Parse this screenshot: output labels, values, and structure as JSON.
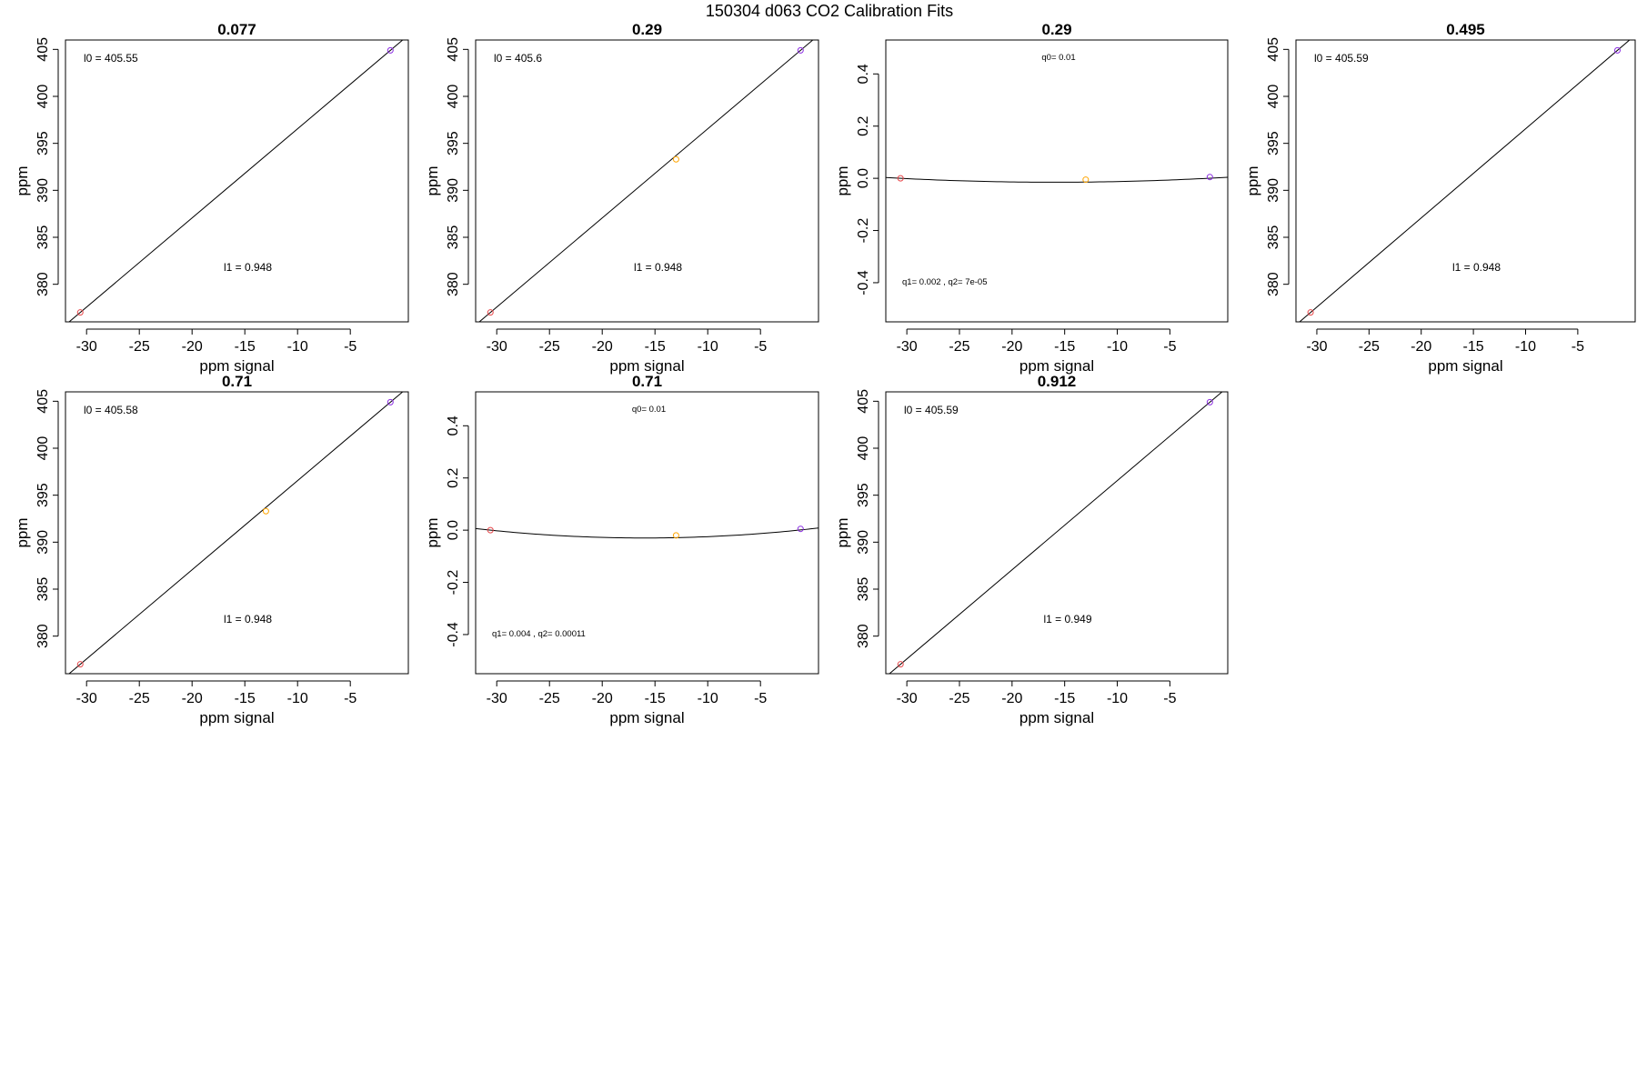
{
  "figure": {
    "title": "150304   d063   CO2 Calibration Fits"
  },
  "chart_data": [
    {
      "type": "scatter",
      "panel": "linear",
      "title": "0.077",
      "xlabel": "ppm signal",
      "ylabel": "ppm",
      "xlim": [
        -32,
        0.5
      ],
      "ylim": [
        376,
        406
      ],
      "xticks": [
        -30,
        -25,
        -20,
        -15,
        -10,
        -5
      ],
      "yticks": [
        380,
        385,
        390,
        395,
        400,
        405
      ],
      "points": [
        {
          "x": -30.6,
          "y": 377,
          "color": "#E8474A"
        },
        {
          "x": -1.2,
          "y": 404.9,
          "color": "#8A2BE2"
        }
      ],
      "fit": {
        "kind": "linear",
        "intercept": 405.55,
        "slope": 0.948
      },
      "annotations": [
        {
          "text": "l0 =  405.55",
          "position": "top-left"
        },
        {
          "text": "l1 =  0.948",
          "position": "lower-center"
        }
      ]
    },
    {
      "type": "scatter",
      "panel": "linear",
      "title": "0.29",
      "xlabel": "ppm signal",
      "ylabel": "ppm",
      "xlim": [
        -32,
        0.5
      ],
      "ylim": [
        376,
        406
      ],
      "xticks": [
        -30,
        -25,
        -20,
        -15,
        -10,
        -5
      ],
      "yticks": [
        380,
        385,
        390,
        395,
        400,
        405
      ],
      "points": [
        {
          "x": -30.6,
          "y": 377,
          "color": "#E8474A"
        },
        {
          "x": -13,
          "y": 393.3,
          "color": "#FFA500"
        },
        {
          "x": -1.2,
          "y": 404.9,
          "color": "#8A2BE2"
        }
      ],
      "fit": {
        "kind": "linear",
        "intercept": 405.6,
        "slope": 0.948
      },
      "annotations": [
        {
          "text": "l0 =  405.6",
          "position": "top-left"
        },
        {
          "text": "l1 =  0.948",
          "position": "lower-center"
        }
      ]
    },
    {
      "type": "scatter",
      "panel": "residual",
      "title": "0.29",
      "xlabel": "ppm signal",
      "ylabel": "ppm",
      "xlim": [
        -32,
        0.5
      ],
      "ylim": [
        -0.55,
        0.53
      ],
      "xticks": [
        -30,
        -25,
        -20,
        -15,
        -10,
        -5
      ],
      "yticks": [
        -0.4,
        -0.2,
        0.0,
        0.2,
        0.4
      ],
      "ytick_labels": [
        "-0.4",
        "-0.2",
        "0.0",
        "0.2",
        "0.4"
      ],
      "points": [
        {
          "x": -30.6,
          "y": 0.0,
          "color": "#E8474A"
        },
        {
          "x": -13,
          "y": -0.005,
          "color": "#FFA500"
        },
        {
          "x": -1.2,
          "y": 0.005,
          "color": "#8A2BE2"
        }
      ],
      "fit": {
        "kind": "quadratic",
        "q0": 0.01,
        "q1": 0.002,
        "q2": 7e-05
      },
      "annotations": [
        {
          "text": "q0= 0.01",
          "position": "top-center"
        },
        {
          "text": "q1= 0.002 , q2= 7e-05",
          "position": "bottom-left"
        }
      ]
    },
    {
      "type": "scatter",
      "panel": "linear",
      "title": "0.495",
      "xlabel": "ppm signal",
      "ylabel": "ppm",
      "xlim": [
        -32,
        0.5
      ],
      "ylim": [
        376,
        406
      ],
      "xticks": [
        -30,
        -25,
        -20,
        -15,
        -10,
        -5
      ],
      "yticks": [
        380,
        385,
        390,
        395,
        400,
        405
      ],
      "points": [
        {
          "x": -30.6,
          "y": 377,
          "color": "#E8474A"
        },
        {
          "x": -1.2,
          "y": 404.9,
          "color": "#8A2BE2"
        }
      ],
      "fit": {
        "kind": "linear",
        "intercept": 405.59,
        "slope": 0.948
      },
      "annotations": [
        {
          "text": "l0 =  405.59",
          "position": "top-left"
        },
        {
          "text": "l1 =  0.948",
          "position": "lower-center"
        }
      ]
    },
    {
      "type": "scatter",
      "panel": "linear",
      "title": "0.71",
      "xlabel": "ppm signal",
      "ylabel": "ppm",
      "xlim": [
        -32,
        0.5
      ],
      "ylim": [
        376,
        406
      ],
      "xticks": [
        -30,
        -25,
        -20,
        -15,
        -10,
        -5
      ],
      "yticks": [
        380,
        385,
        390,
        395,
        400,
        405
      ],
      "points": [
        {
          "x": -30.6,
          "y": 377,
          "color": "#E8474A"
        },
        {
          "x": -13,
          "y": 393.3,
          "color": "#FFA500"
        },
        {
          "x": -1.2,
          "y": 404.9,
          "color": "#8A2BE2"
        }
      ],
      "fit": {
        "kind": "linear",
        "intercept": 405.58,
        "slope": 0.948
      },
      "annotations": [
        {
          "text": "l0 =  405.58",
          "position": "top-left"
        },
        {
          "text": "l1 =  0.948",
          "position": "lower-center"
        }
      ]
    },
    {
      "type": "scatter",
      "panel": "residual",
      "title": "0.71",
      "xlabel": "ppm signal",
      "ylabel": "ppm",
      "xlim": [
        -32,
        0.5
      ],
      "ylim": [
        -0.55,
        0.53
      ],
      "xticks": [
        -30,
        -25,
        -20,
        -15,
        -10,
        -5
      ],
      "yticks": [
        -0.4,
        -0.2,
        0.0,
        0.2,
        0.4
      ],
      "ytick_labels": [
        "-0.4",
        "-0.2",
        "0.0",
        "0.2",
        "0.4"
      ],
      "points": [
        {
          "x": -30.6,
          "y": 0.0,
          "color": "#E8474A"
        },
        {
          "x": -13,
          "y": -0.02,
          "color": "#FFA500"
        },
        {
          "x": -1.2,
          "y": 0.005,
          "color": "#8A2BE2"
        }
      ],
      "fit": {
        "kind": "quadratic",
        "q0": 0.01,
        "q1": 0.004,
        "q2": 0.00011
      },
      "annotations": [
        {
          "text": "q0= 0.01",
          "position": "top-center"
        },
        {
          "text": "q1= 0.004 , q2= 0.00011",
          "position": "bottom-left"
        }
      ]
    },
    {
      "type": "scatter",
      "panel": "linear",
      "title": "0.912",
      "xlabel": "ppm signal",
      "ylabel": "ppm",
      "xlim": [
        -32,
        0.5
      ],
      "ylim": [
        376,
        406
      ],
      "xticks": [
        -30,
        -25,
        -20,
        -15,
        -10,
        -5
      ],
      "yticks": [
        380,
        385,
        390,
        395,
        400,
        405
      ],
      "points": [
        {
          "x": -30.6,
          "y": 377,
          "color": "#E8474A"
        },
        {
          "x": -1.2,
          "y": 404.9,
          "color": "#8A2BE2"
        }
      ],
      "fit": {
        "kind": "linear",
        "intercept": 405.59,
        "slope": 0.949
      },
      "annotations": [
        {
          "text": "l0 =  405.59",
          "position": "top-left"
        },
        {
          "text": "l1 =  0.949",
          "position": "lower-center"
        }
      ]
    }
  ]
}
